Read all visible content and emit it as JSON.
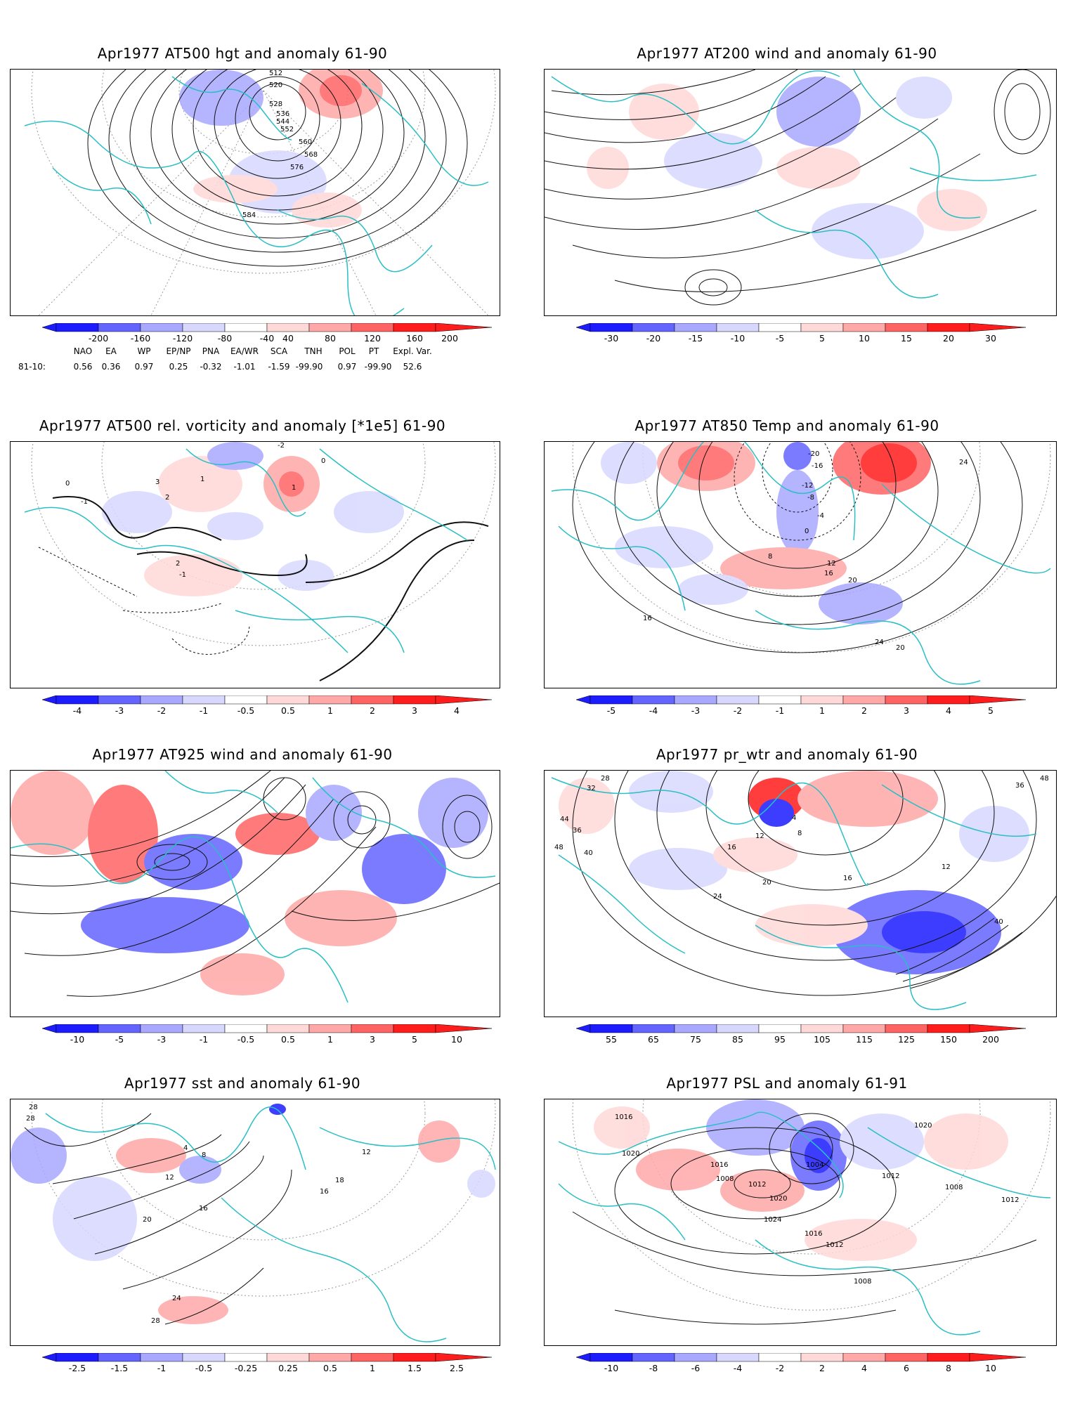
{
  "colors": {
    "frame": "#000000",
    "coast": "#29bfc4",
    "contour": "#111111",
    "grid": "#9a9a9a",
    "blue_dark": "#1c1cff",
    "blue_mid": "#6464ff",
    "blue_light": "#a8a8ff",
    "blue_pale": "#d8d8ff",
    "red_pale": "#ffd8d8",
    "red_light": "#ffa8a8",
    "red_mid": "#ff6464",
    "red_dark": "#ff1c1c"
  },
  "panels": [
    {
      "id": "hgt500",
      "title": "Apr1977 AT500 hgt and anomaly 61-90",
      "contour_labels": [
        "512",
        "520",
        "528",
        "536",
        "544",
        "552",
        "560",
        "568",
        "576",
        "584"
      ],
      "colorbar": [
        "-200",
        "-160",
        "-120",
        "-80",
        "-40",
        "40",
        "80",
        "120",
        "160",
        "200"
      ]
    },
    {
      "id": "wind200",
      "title": "Apr1977 AT200 wind and anomaly 61-90",
      "contour_labels": [],
      "colorbar": [
        "-30",
        "-20",
        "-15",
        "-10",
        "-5",
        "5",
        "10",
        "15",
        "20",
        "30"
      ]
    },
    {
      "id": "vort500",
      "title": "Apr1977 AT500 rel. vorticity and anomaly [*1e5] 61-90",
      "contour_labels": [
        "0",
        "-1",
        "1",
        "2",
        "3",
        "-2",
        "0",
        "-1",
        "2",
        "1"
      ],
      "colorbar": [
        "-4",
        "-3",
        "-2",
        "-1",
        "-0.5",
        "0.5",
        "1",
        "2",
        "3",
        "4"
      ]
    },
    {
      "id": "temp850",
      "title": "Apr1977 AT850 Temp and anomaly 61-90",
      "contour_labels": [
        "-20",
        "-16",
        "-12",
        "-8",
        "-4",
        "0",
        "8",
        "12",
        "16",
        "20",
        "24",
        "16",
        "24",
        "20"
      ],
      "colorbar": [
        "-5",
        "-4",
        "-3",
        "-2",
        "-1",
        "1",
        "2",
        "3",
        "4",
        "5"
      ]
    },
    {
      "id": "wind925",
      "title": "Apr1977 AT925 wind and anomaly 61-90",
      "contour_labels": [],
      "colorbar": [
        "-10",
        "-5",
        "-3",
        "-1",
        "-0.5",
        "0.5",
        "1",
        "3",
        "5",
        "10"
      ]
    },
    {
      "id": "prwtr",
      "title": "Apr1977 pr_wtr and anomaly 61-90",
      "contour_labels": [
        "28",
        "32",
        "36",
        "40",
        "44",
        "48",
        "16",
        "20",
        "24",
        "12",
        "8",
        "4",
        "16",
        "12",
        "36",
        "40",
        "48"
      ],
      "colorbar": [
        "55",
        "65",
        "75",
        "85",
        "95",
        "105",
        "115",
        "125",
        "150",
        "200"
      ]
    },
    {
      "id": "sst",
      "title": "Apr1977 sst and anomaly 61-90",
      "contour_labels": [
        "28",
        "28",
        "4",
        "8",
        "12",
        "16",
        "20",
        "24",
        "28",
        "12",
        "16",
        "18"
      ],
      "colorbar": [
        "-2.5",
        "-1.5",
        "-1",
        "-0.5",
        "-0.25",
        "0.25",
        "0.5",
        "1",
        "1.5",
        "2.5"
      ]
    },
    {
      "id": "psl",
      "title": "Apr1977 PSL and anomaly 61-91",
      "contour_labels": [
        "1016",
        "1020",
        "1016",
        "1008",
        "1012",
        "1020",
        "1024",
        "1016",
        "1012",
        "1008",
        "1004",
        "1020",
        "1012",
        "1008",
        "1012"
      ],
      "colorbar": [
        "-10",
        "-8",
        "-6",
        "-4",
        "-2",
        "2",
        "4",
        "6",
        "8",
        "10"
      ]
    }
  ],
  "teleconnection": {
    "headers": [
      "NAO",
      "EA",
      "WP",
      "EP/NP",
      "PNA",
      "EA/WR",
      "SCA",
      "TNH",
      "POL",
      "PT",
      "Expl. Var."
    ],
    "row_label": "81-10:",
    "values": [
      "0.56",
      "0.36",
      "0.97",
      "0.25",
      "-0.32",
      "-1.01",
      "-1.59",
      "-99.90",
      "0.97",
      "-99.90",
      "52.6"
    ]
  }
}
